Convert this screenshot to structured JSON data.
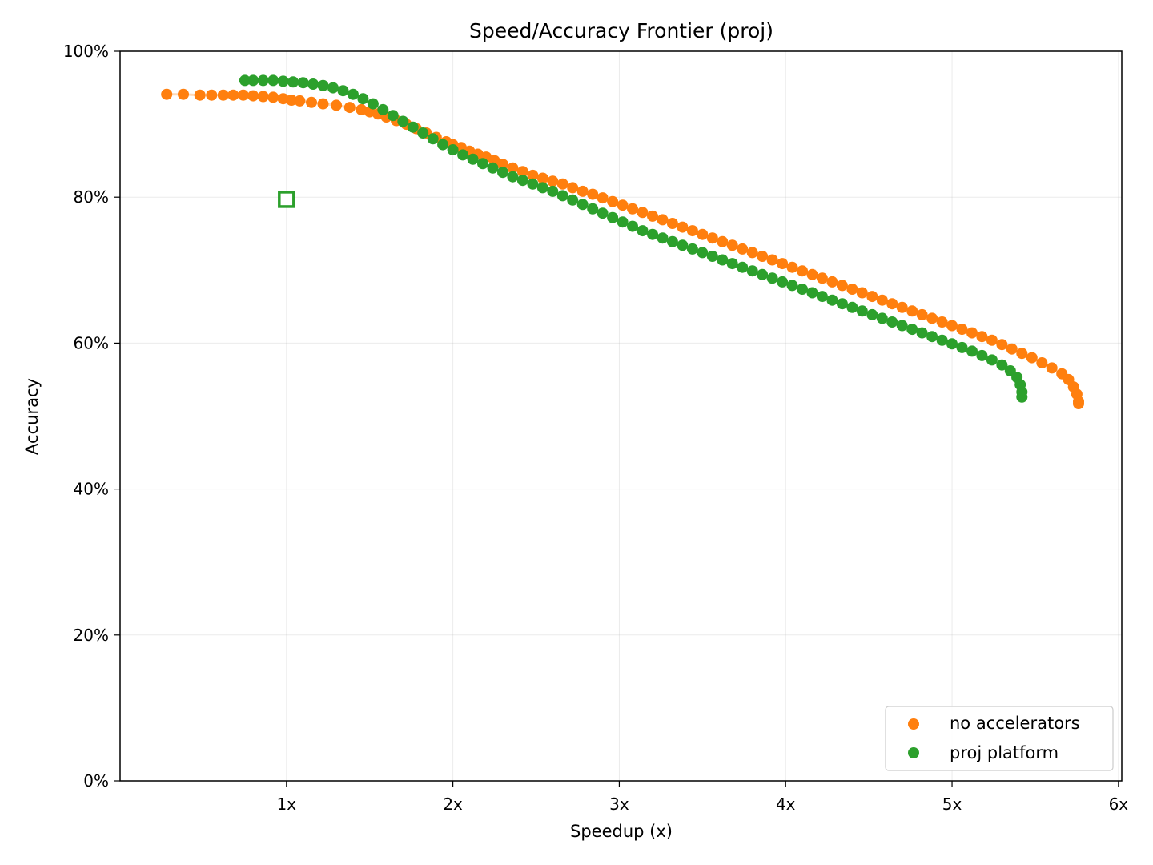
{
  "chart_data": {
    "type": "scatter",
    "title": "Speed/Accuracy Frontier (proj)",
    "xlabel": "Speedup (x)",
    "ylabel": "Accuracy",
    "xlim": [
      0,
      6.02
    ],
    "ylim": [
      0,
      100
    ],
    "x_ticks": [
      {
        "value": 1,
        "label": "1x"
      },
      {
        "value": 2,
        "label": "2x"
      },
      {
        "value": 3,
        "label": "3x"
      },
      {
        "value": 4,
        "label": "4x"
      },
      {
        "value": 5,
        "label": "5x"
      },
      {
        "value": 6,
        "label": "6x"
      }
    ],
    "y_ticks": [
      {
        "value": 0,
        "label": "0%"
      },
      {
        "value": 20,
        "label": "20%"
      },
      {
        "value": 40,
        "label": "40%"
      },
      {
        "value": 60,
        "label": "60%"
      },
      {
        "value": 80,
        "label": "80%"
      },
      {
        "value": 100,
        "label": "100%"
      }
    ],
    "grid": true,
    "legend_position": "bottom-right",
    "series": [
      {
        "name": "no accelerators",
        "color": "#ff7f0e",
        "show_line": true,
        "points": [
          [
            0.28,
            94.1
          ],
          [
            0.38,
            94.1
          ],
          [
            0.48,
            94.0
          ],
          [
            0.55,
            94.0
          ],
          [
            0.62,
            94.0
          ],
          [
            0.68,
            94.0
          ],
          [
            0.74,
            94.0
          ],
          [
            0.8,
            93.9
          ],
          [
            0.86,
            93.8
          ],
          [
            0.92,
            93.7
          ],
          [
            0.98,
            93.5
          ],
          [
            1.03,
            93.3
          ],
          [
            1.08,
            93.2
          ],
          [
            1.15,
            93.0
          ],
          [
            1.22,
            92.8
          ],
          [
            1.3,
            92.6
          ],
          [
            1.38,
            92.3
          ],
          [
            1.45,
            92.0
          ],
          [
            1.5,
            91.7
          ],
          [
            1.55,
            91.4
          ],
          [
            1.6,
            91.0
          ],
          [
            1.66,
            90.5
          ],
          [
            1.72,
            90.0
          ],
          [
            1.78,
            89.4
          ],
          [
            1.84,
            88.8
          ],
          [
            1.9,
            88.2
          ],
          [
            1.96,
            87.6
          ],
          [
            2.0,
            87.2
          ],
          [
            2.05,
            86.8
          ],
          [
            2.1,
            86.3
          ],
          [
            2.15,
            85.9
          ],
          [
            2.2,
            85.5
          ],
          [
            2.25,
            85.0
          ],
          [
            2.3,
            84.5
          ],
          [
            2.36,
            84.0
          ],
          [
            2.42,
            83.5
          ],
          [
            2.48,
            83.0
          ],
          [
            2.54,
            82.6
          ],
          [
            2.6,
            82.2
          ],
          [
            2.66,
            81.8
          ],
          [
            2.72,
            81.3
          ],
          [
            2.78,
            80.8
          ],
          [
            2.84,
            80.4
          ],
          [
            2.9,
            79.9
          ],
          [
            2.96,
            79.4
          ],
          [
            3.02,
            78.9
          ],
          [
            3.08,
            78.4
          ],
          [
            3.14,
            77.9
          ],
          [
            3.2,
            77.4
          ],
          [
            3.26,
            76.9
          ],
          [
            3.32,
            76.4
          ],
          [
            3.38,
            75.9
          ],
          [
            3.44,
            75.4
          ],
          [
            3.5,
            74.9
          ],
          [
            3.56,
            74.4
          ],
          [
            3.62,
            73.9
          ],
          [
            3.68,
            73.4
          ],
          [
            3.74,
            72.9
          ],
          [
            3.8,
            72.4
          ],
          [
            3.86,
            71.9
          ],
          [
            3.92,
            71.4
          ],
          [
            3.98,
            70.9
          ],
          [
            4.04,
            70.4
          ],
          [
            4.1,
            69.9
          ],
          [
            4.16,
            69.4
          ],
          [
            4.22,
            68.9
          ],
          [
            4.28,
            68.4
          ],
          [
            4.34,
            67.9
          ],
          [
            4.4,
            67.4
          ],
          [
            4.46,
            66.9
          ],
          [
            4.52,
            66.4
          ],
          [
            4.58,
            65.9
          ],
          [
            4.64,
            65.4
          ],
          [
            4.7,
            64.9
          ],
          [
            4.76,
            64.4
          ],
          [
            4.82,
            63.9
          ],
          [
            4.88,
            63.4
          ],
          [
            4.94,
            62.9
          ],
          [
            5.0,
            62.4
          ],
          [
            5.06,
            61.9
          ],
          [
            5.12,
            61.4
          ],
          [
            5.18,
            60.9
          ],
          [
            5.24,
            60.4
          ],
          [
            5.3,
            59.8
          ],
          [
            5.36,
            59.2
          ],
          [
            5.42,
            58.6
          ],
          [
            5.48,
            58.0
          ],
          [
            5.54,
            57.3
          ],
          [
            5.6,
            56.6
          ],
          [
            5.66,
            55.8
          ],
          [
            5.7,
            55.0
          ],
          [
            5.73,
            54.0
          ],
          [
            5.75,
            53.0
          ],
          [
            5.76,
            52.0
          ],
          [
            5.76,
            51.7
          ]
        ]
      },
      {
        "name": "proj platform",
        "color": "#2ca02c",
        "show_line": true,
        "points": [
          [
            0.75,
            96.0
          ],
          [
            0.8,
            96.0
          ],
          [
            0.86,
            96.0
          ],
          [
            0.92,
            96.0
          ],
          [
            0.98,
            95.9
          ],
          [
            1.04,
            95.8
          ],
          [
            1.1,
            95.7
          ],
          [
            1.16,
            95.5
          ],
          [
            1.22,
            95.3
          ],
          [
            1.28,
            95.0
          ],
          [
            1.34,
            94.6
          ],
          [
            1.4,
            94.1
          ],
          [
            1.46,
            93.5
          ],
          [
            1.52,
            92.8
          ],
          [
            1.58,
            92.0
          ],
          [
            1.64,
            91.2
          ],
          [
            1.7,
            90.4
          ],
          [
            1.76,
            89.6
          ],
          [
            1.82,
            88.8
          ],
          [
            1.88,
            88.0
          ],
          [
            1.94,
            87.2
          ],
          [
            2.0,
            86.5
          ],
          [
            2.06,
            85.8
          ],
          [
            2.12,
            85.2
          ],
          [
            2.18,
            84.6
          ],
          [
            2.24,
            84.0
          ],
          [
            2.3,
            83.4
          ],
          [
            2.36,
            82.8
          ],
          [
            2.42,
            82.3
          ],
          [
            2.48,
            81.8
          ],
          [
            2.54,
            81.3
          ],
          [
            2.6,
            80.8
          ],
          [
            2.66,
            80.2
          ],
          [
            2.72,
            79.6
          ],
          [
            2.78,
            79.0
          ],
          [
            2.84,
            78.4
          ],
          [
            2.9,
            77.8
          ],
          [
            2.96,
            77.2
          ],
          [
            3.02,
            76.6
          ],
          [
            3.08,
            76.0
          ],
          [
            3.14,
            75.4
          ],
          [
            3.2,
            74.9
          ],
          [
            3.26,
            74.4
          ],
          [
            3.32,
            73.9
          ],
          [
            3.38,
            73.4
          ],
          [
            3.44,
            72.9
          ],
          [
            3.5,
            72.4
          ],
          [
            3.56,
            71.9
          ],
          [
            3.62,
            71.4
          ],
          [
            3.68,
            70.9
          ],
          [
            3.74,
            70.4
          ],
          [
            3.8,
            69.9
          ],
          [
            3.86,
            69.4
          ],
          [
            3.92,
            68.9
          ],
          [
            3.98,
            68.4
          ],
          [
            4.04,
            67.9
          ],
          [
            4.1,
            67.4
          ],
          [
            4.16,
            66.9
          ],
          [
            4.22,
            66.4
          ],
          [
            4.28,
            65.9
          ],
          [
            4.34,
            65.4
          ],
          [
            4.4,
            64.9
          ],
          [
            4.46,
            64.4
          ],
          [
            4.52,
            63.9
          ],
          [
            4.58,
            63.4
          ],
          [
            4.64,
            62.9
          ],
          [
            4.7,
            62.4
          ],
          [
            4.76,
            61.9
          ],
          [
            4.82,
            61.4
          ],
          [
            4.88,
            60.9
          ],
          [
            4.94,
            60.4
          ],
          [
            5.0,
            59.9
          ],
          [
            5.06,
            59.4
          ],
          [
            5.12,
            58.9
          ],
          [
            5.18,
            58.3
          ],
          [
            5.24,
            57.7
          ],
          [
            5.3,
            57.0
          ],
          [
            5.35,
            56.2
          ],
          [
            5.39,
            55.3
          ],
          [
            5.41,
            54.3
          ],
          [
            5.42,
            53.3
          ],
          [
            5.42,
            52.6
          ]
        ]
      }
    ],
    "extra_markers": [
      {
        "x": 1.0,
        "y": 79.7,
        "shape": "hollow-square",
        "color": "#2ca02c"
      }
    ]
  }
}
